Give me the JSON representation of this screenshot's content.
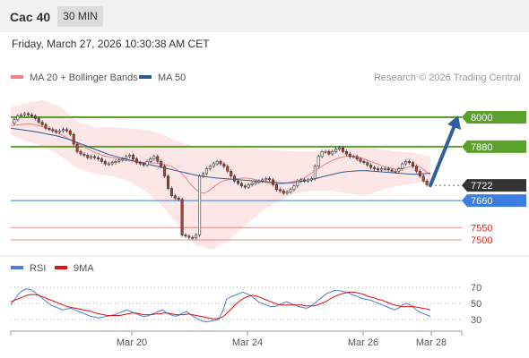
{
  "header": {
    "symbol": "Cac 40",
    "timeframe": "30 MIN"
  },
  "timestamp": "Friday, March 27, 2026 10:30:38 AM CET",
  "legend": {
    "ma20": "MA 20 + Bollinger Bands",
    "ma50": "MA 50",
    "ma20_color": "#f08080",
    "ma50_color": "#2c5b94",
    "copyright": "Research © 2026 Trading Central"
  },
  "rsi_legend": {
    "rsi": "RSI",
    "ma9": "9MA",
    "rsi_color": "#4a7fd4",
    "ma9_color": "#e01010"
  },
  "colors": {
    "resistance": "#5aa02c",
    "support": "#3b7de0",
    "secondary": "#e06060",
    "current": "#333333",
    "up": "#3c8c3c",
    "down": "#c0392b",
    "arrow": "#2f5f9e"
  },
  "chart_data": [
    {
      "type": "line",
      "ylim": [
        7480,
        8050
      ],
      "x_ticks": [
        "Mar 20",
        "Mar 24",
        "Mar 26",
        "Mar 28"
      ],
      "levels": [
        {
          "value": 8000,
          "label": "8000",
          "kind": "resistance"
        },
        {
          "value": 7880,
          "label": "7880",
          "kind": "resistance"
        },
        {
          "value": 7722,
          "label": "7722",
          "kind": "current"
        },
        {
          "value": 7660,
          "label": "7660",
          "kind": "support"
        },
        {
          "value": 7550,
          "label": "7550",
          "kind": "secondary"
        },
        {
          "value": 7500,
          "label": "7500",
          "kind": "secondary"
        }
      ],
      "price": [
        7975,
        7990,
        8005,
        8010,
        8015,
        8010,
        8005,
        7995,
        7980,
        7970,
        7955,
        7950,
        7945,
        7940,
        7945,
        7950,
        7945,
        7930,
        7890,
        7860,
        7850,
        7845,
        7835,
        7840,
        7835,
        7830,
        7820,
        7810,
        7810,
        7815,
        7820,
        7825,
        7830,
        7840,
        7845,
        7830,
        7815,
        7810,
        7805,
        7820,
        7830,
        7840,
        7820,
        7800,
        7760,
        7710,
        7680,
        7670,
        7665,
        7520,
        7515,
        7510,
        7508,
        7520,
        7760,
        7770,
        7790,
        7800,
        7810,
        7820,
        7810,
        7800,
        7780,
        7760,
        7740,
        7730,
        7720,
        7715,
        7725,
        7730,
        7735,
        7740,
        7745,
        7750,
        7745,
        7725,
        7705,
        7700,
        7690,
        7695,
        7705,
        7720,
        7740,
        7745,
        7740,
        7745,
        7750,
        7800,
        7840,
        7860,
        7860,
        7850,
        7860,
        7870,
        7875,
        7860,
        7850,
        7840,
        7840,
        7830,
        7820,
        7815,
        7805,
        7795,
        7790,
        7785,
        7790,
        7790,
        7785,
        7780,
        7780,
        7790,
        7810,
        7820,
        7815,
        7800,
        7780,
        7760,
        7740,
        7725,
        7722
      ],
      "ma20": [
        7965,
        7968,
        7970,
        7972,
        7974,
        7970,
        7965,
        7960,
        7952,
        7945,
        7935,
        7925,
        7915,
        7905,
        7895,
        7885,
        7875,
        7865,
        7855,
        7848,
        7842,
        7838,
        7834,
        7830,
        7826,
        7822,
        7820,
        7818,
        7816,
        7815,
        7814,
        7812,
        7810,
        7806,
        7800,
        7790,
        7775,
        7755,
        7730,
        7710,
        7695,
        7690,
        7700,
        7715,
        7730,
        7740,
        7745,
        7748,
        7750,
        7752,
        7752,
        7750,
        7745,
        7740,
        7735,
        7730,
        7728,
        7728,
        7730,
        7734,
        7738,
        7742,
        7750,
        7762,
        7775,
        7788,
        7800,
        7812,
        7822,
        7830,
        7836,
        7840,
        7842,
        7840,
        7836,
        7830,
        7822,
        7815,
        7808,
        7800,
        7794,
        7790,
        7788,
        7790,
        7795,
        7800,
        7800,
        7795,
        7780,
        7765
      ],
      "ma50": [
        7955,
        7952,
        7948,
        7944,
        7940,
        7935,
        7930,
        7925,
        7918,
        7910,
        7900,
        7890,
        7880,
        7870,
        7860,
        7850,
        7842,
        7835,
        7828,
        7822,
        7816,
        7810,
        7804,
        7798,
        7792,
        7786,
        7780,
        7774,
        7768,
        7762,
        7758,
        7755,
        7752,
        7750,
        7748,
        7746,
        7744,
        7742,
        7740,
        7738,
        7736,
        7734,
        7732,
        7732,
        7734,
        7738,
        7742,
        7748,
        7755,
        7762,
        7768,
        7774,
        7778,
        7780,
        7782,
        7782,
        7780,
        7778,
        7776,
        7774,
        7772,
        7770,
        7768,
        7768,
        7770,
        7772
      ],
      "bb_upper": [
        8040,
        8060,
        8070,
        8040,
        7980,
        7960,
        7960,
        7955,
        7950,
        7930,
        7900,
        7880,
        7880,
        7880,
        7875,
        7870,
        7865,
        7860,
        7860,
        7870,
        7880,
        7880,
        7870,
        7860,
        7855,
        7840
      ],
      "bb_lower": [
        7930,
        7900,
        7880,
        7840,
        7790,
        7770,
        7760,
        7740,
        7700,
        7640,
        7560,
        7480,
        7460,
        7500,
        7560,
        7620,
        7660,
        7690,
        7700,
        7700,
        7690,
        7680,
        7700,
        7720,
        7730,
        7740
      ]
    },
    {
      "type": "line",
      "name": "RSI",
      "ylim": [
        22,
        78
      ],
      "y_ticks": [
        70,
        50,
        30
      ],
      "rsi": [
        48,
        55,
        62,
        66,
        68,
        67,
        64,
        60,
        56,
        52,
        48,
        46,
        44,
        42,
        43,
        44,
        42,
        40,
        38,
        36,
        34,
        33,
        32,
        33,
        34,
        35,
        36,
        38,
        40,
        42,
        40,
        38,
        36,
        34,
        34,
        36,
        38,
        40,
        42,
        38,
        36,
        34,
        35,
        38,
        40,
        36,
        33,
        30,
        28,
        27,
        28,
        29,
        30,
        40,
        55,
        58,
        60,
        62,
        64,
        62,
        60,
        56,
        52,
        50,
        48,
        46,
        46,
        48,
        50,
        52,
        50,
        48,
        46,
        45,
        44,
        46,
        50,
        54,
        58,
        62,
        64,
        66,
        66,
        65,
        64,
        62,
        60,
        58,
        56,
        55,
        54,
        52,
        50,
        48,
        46,
        44,
        42,
        44,
        48,
        50,
        48,
        44,
        40,
        38,
        36,
        34
      ],
      "ma9": [
        52,
        54,
        56,
        58,
        60,
        61,
        61,
        60,
        58,
        56,
        54,
        52,
        50,
        48,
        46,
        45,
        44,
        43,
        42,
        41,
        40,
        38,
        37,
        36,
        35,
        35,
        35,
        35,
        36,
        37,
        38,
        38,
        37,
        36,
        36,
        36,
        37,
        37,
        38,
        38,
        37,
        36,
        36,
        36,
        37,
        36,
        35,
        34,
        33,
        32,
        31,
        31,
        32,
        35,
        40,
        45,
        50,
        54,
        57,
        59,
        60,
        59,
        57,
        55,
        53,
        51,
        49,
        48,
        48,
        48,
        48,
        48,
        48,
        47,
        47,
        47,
        48,
        50,
        52,
        55,
        58,
        60,
        62,
        63,
        64,
        64,
        63,
        62,
        60,
        58,
        57,
        55,
        54,
        52,
        50,
        48,
        47,
        46,
        46,
        46,
        46,
        45,
        44,
        43,
        42
      ]
    }
  ]
}
